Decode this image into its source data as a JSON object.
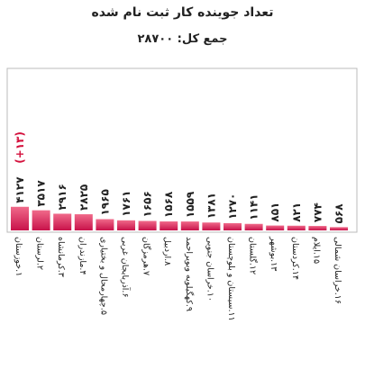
{
  "chart_data": {
    "type": "bar",
    "title": "تعداد جوینده کار ثبت نام شده",
    "subtitle": "جمع کل: ۲۸۷۰۰",
    "categories": [
      "۱.خوزستان",
      "۲.لرستان",
      "۳.کرمانشاه",
      "۴.مازندران",
      "۵.چهارمحال و بختیاری",
      "۶.آذربایجان غربی",
      "۷.هرمزگان",
      "۸.اردبیل",
      "۹.کهگیلویه وبویراحمد",
      "۱۰.خراسان جنوبی",
      "۱۱.سیستان و بلوچستان",
      "۱۲.گلستان",
      "۱۳.بوشهر",
      "۱۴.کردستان",
      "۱۵.ایلام",
      "۱۶.خراسان شمالی"
    ],
    "values": [
      4127,
      3517,
      2916,
      2825,
      1965,
      1761,
      1656,
      1568,
      1559,
      1381,
      1270,
      1141,
      851,
      821,
      774,
      568
    ],
    "value_labels": [
      "۴۱۲۷",
      "۳۵۱۷",
      "۲۹۱۶",
      "۲۸۲۵",
      "۱۹۶۵",
      "۱۷۶۱",
      "۱۶۵۶",
      "۱۵۶۸",
      "۱۵۵۹",
      "۱۳۸۱",
      "۱۲۷۰",
      "۱۱۴۱",
      "۸۵۱",
      "۸۲۱",
      "۷۷۴",
      "۵۶۸"
    ],
    "annotation": {
      "category_index": 0,
      "text": "(+۱۳)"
    },
    "ylim": [
      0,
      28000
    ],
    "grid": false,
    "legend": "none",
    "colors": {
      "bar_top": "#f06a8a",
      "bar_bottom": "#c8124a",
      "annotation": "#d4103c",
      "frame": "#bbbbbb"
    }
  }
}
